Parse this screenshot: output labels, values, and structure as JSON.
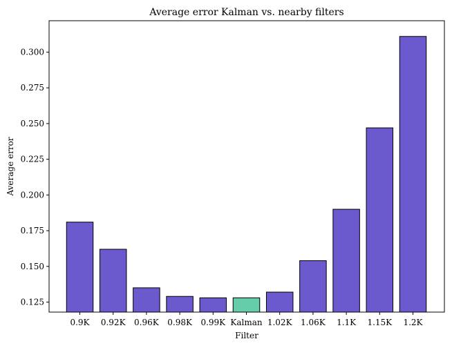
{
  "chart_data": {
    "type": "bar",
    "title": "Average error Kalman vs. nearby filters",
    "xlabel": "Filter",
    "ylabel": "Average error",
    "categories": [
      "0.9K",
      "0.92K",
      "0.96K",
      "0.98K",
      "0.99K",
      "Kalman",
      "1.02K",
      "1.06K",
      "1.1K",
      "1.15K",
      "1.2K"
    ],
    "values": [
      0.181,
      0.162,
      0.135,
      0.129,
      0.128,
      0.128,
      0.132,
      0.154,
      0.19,
      0.247,
      0.311
    ],
    "highlight_category": "Kalman",
    "bar_color": "#6a5acd",
    "highlight_color": "#66cdaa",
    "ylim": [
      0.118,
      0.322
    ],
    "yticks": [
      0.125,
      0.15,
      0.175,
      0.2,
      0.225,
      0.25,
      0.275,
      0.3
    ],
    "ytick_labels": [
      "0.125",
      "0.150",
      "0.175",
      "0.200",
      "0.225",
      "0.250",
      "0.275",
      "0.300"
    ],
    "grid": false,
    "legend": "none"
  }
}
